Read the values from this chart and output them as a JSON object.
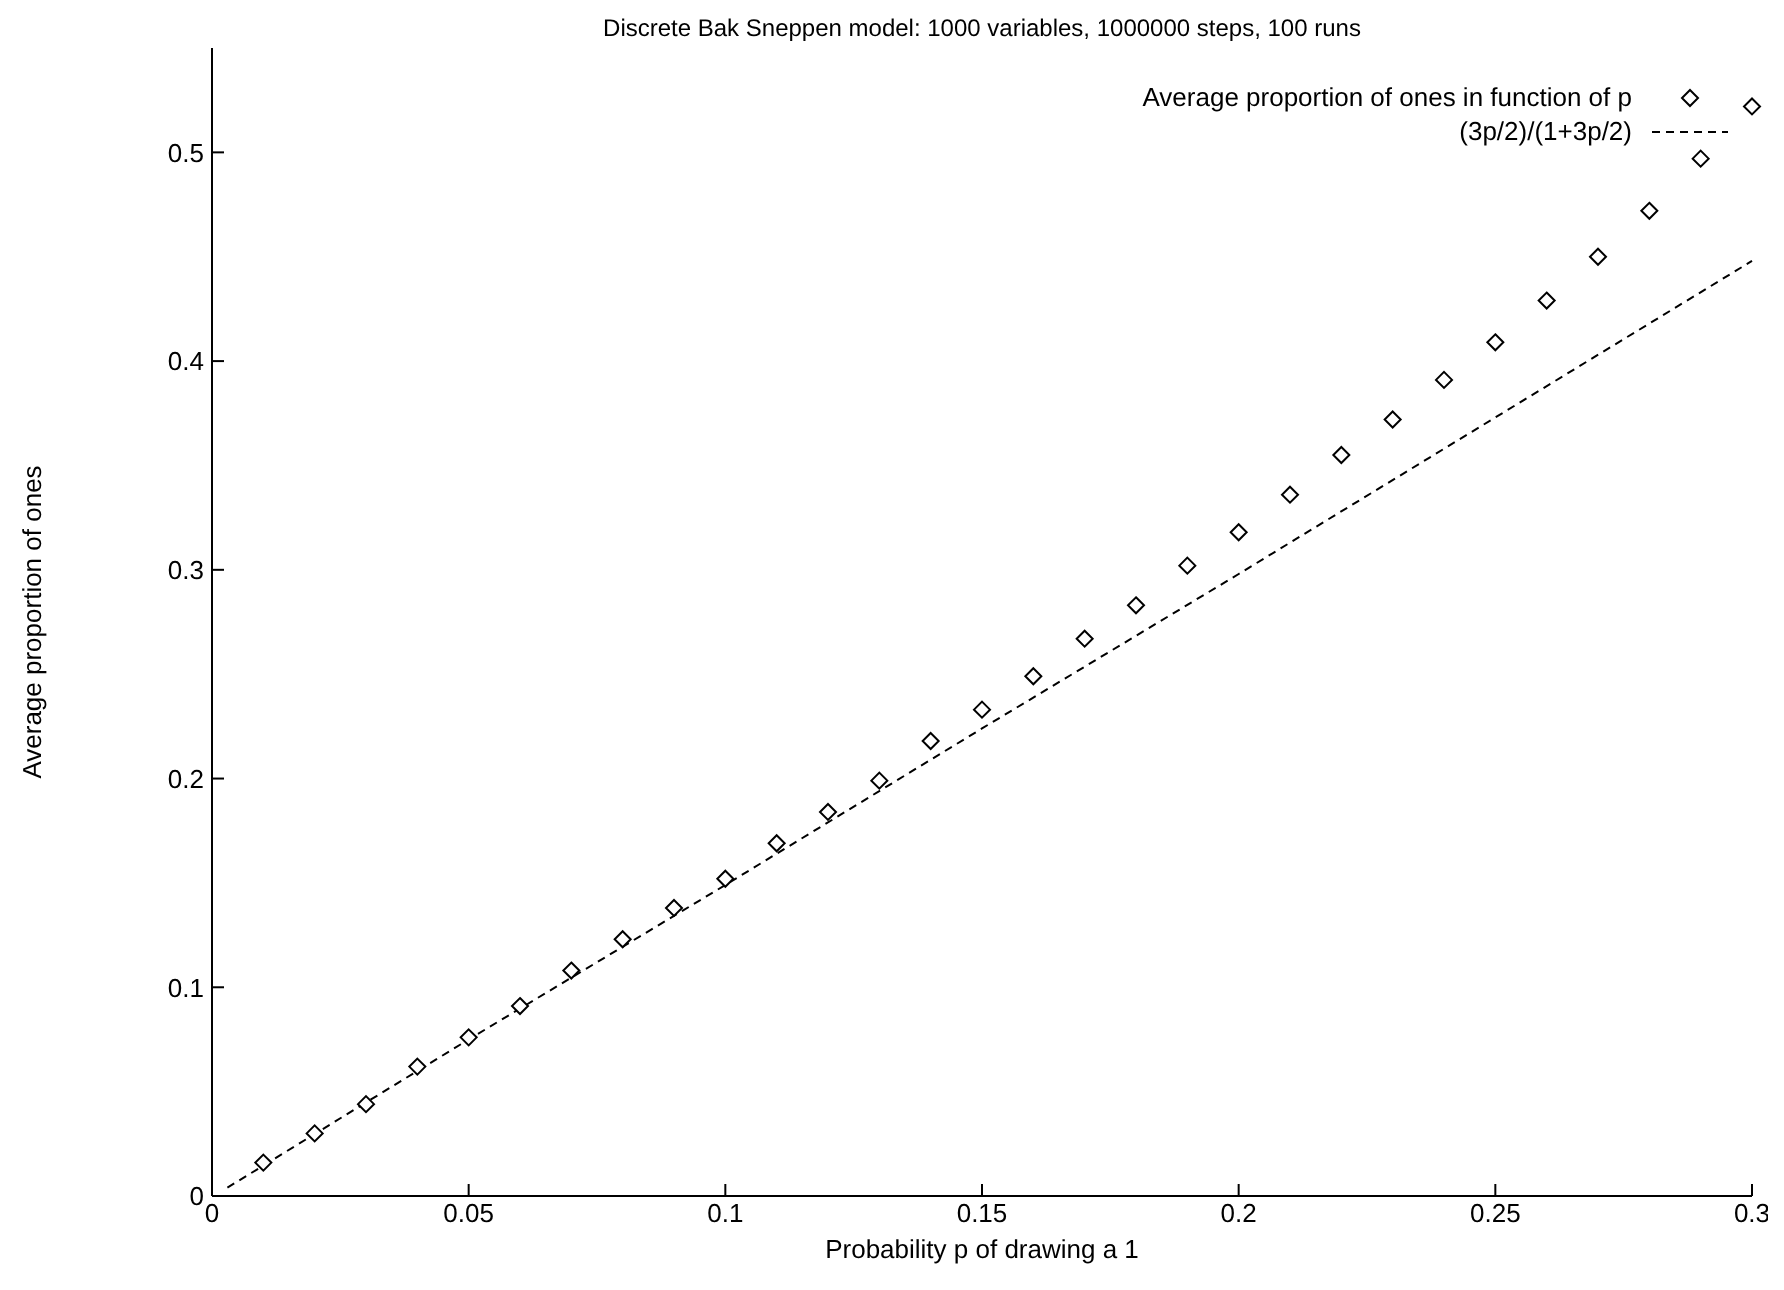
{
  "chart_data": {
    "type": "scatter",
    "title": "Discrete Bak Sneppen model:  1000 variables, 1000000 steps, 100 runs",
    "xlabel": "Probability p of drawing a 1",
    "ylabel": "Average proportion of ones",
    "series": [
      {
        "name": "Average proportion of ones in function of p",
        "type": "scatter",
        "color": "#000000",
        "marker": "diamond",
        "x": [
          0.01,
          0.02,
          0.03,
          0.04,
          0.05,
          0.06,
          0.07,
          0.08,
          0.09,
          0.1,
          0.11,
          0.12,
          0.13,
          0.14,
          0.15,
          0.16,
          0.17,
          0.18,
          0.19,
          0.2,
          0.21,
          0.22,
          0.23,
          0.24,
          0.25,
          0.26,
          0.27,
          0.28,
          0.29,
          0.3
        ],
        "values": [
          0.016,
          0.03,
          0.044,
          0.062,
          0.076,
          0.091,
          0.108,
          0.123,
          0.138,
          0.152,
          0.169,
          0.184,
          0.199,
          0.218,
          0.233,
          0.249,
          0.267,
          0.283,
          0.302,
          0.318,
          0.336,
          0.355,
          0.372,
          0.391,
          0.409,
          0.429,
          0.45,
          0.472,
          0.497,
          0.522
        ]
      },
      {
        "name": "(3p/2)/(1+3p/2)",
        "type": "line",
        "color": "#000000",
        "line_style": "dashed",
        "marker": "none",
        "x": [
          0.003,
          0.05,
          0.1,
          0.15,
          0.2,
          0.25,
          0.3
        ],
        "values": [
          0.004,
          0.075,
          0.149,
          0.224,
          0.298,
          0.373,
          0.448
        ]
      }
    ],
    "xlim": [
      0,
      0.3
    ],
    "xticks": [
      0,
      0.05,
      0.1,
      0.15,
      0.2,
      0.25,
      0.3
    ],
    "ylim": [
      0,
      0.55
    ],
    "yticks": [
      0,
      0.1,
      0.2,
      0.3,
      0.4,
      0.5
    ],
    "grid": false,
    "legend": "top right"
  }
}
